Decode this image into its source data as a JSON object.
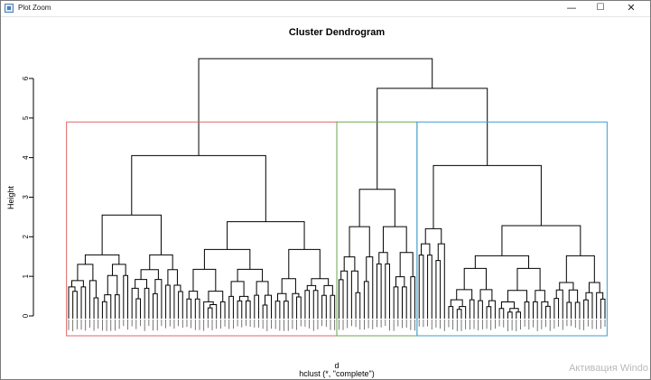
{
  "window": {
    "title": "Plot Zoom",
    "icons": [
      "app-icon",
      "minimize-icon",
      "maximize-icon",
      "close-icon"
    ]
  },
  "watermark": {
    "text": "Активация Windo"
  },
  "chart_data": {
    "type": "dendrogram",
    "title": "Cluster Dendrogram",
    "xlabel": "d",
    "sublabel": "hclust (*, \"complete\")",
    "ylabel": "Height",
    "ylim": [
      0,
      6.5
    ],
    "yticks": [
      0,
      1,
      2,
      3,
      4,
      5,
      6
    ],
    "leaf_count": 128,
    "root_height": 6.5,
    "top_merges": [
      {
        "name": "left",
        "height": 4.05
      },
      {
        "name": "right",
        "height": 5.75
      },
      {
        "name": "middle",
        "height": 3.2
      },
      {
        "name": "far-right",
        "height": 3.8
      },
      {
        "name": "left-a",
        "height": 2.55
      },
      {
        "name": "left-b",
        "height": 2.38
      },
      {
        "name": "far-right-b",
        "height": 2.28
      }
    ],
    "cut_height": 4.9,
    "clusters": [
      {
        "index": 1,
        "color": "#e06666",
        "leaves": 64
      },
      {
        "index": 2,
        "color": "#6aa84f",
        "leaves": 19
      },
      {
        "index": 3,
        "color": "#3d9bd6",
        "leaves": 45
      }
    ],
    "grid": false
  }
}
